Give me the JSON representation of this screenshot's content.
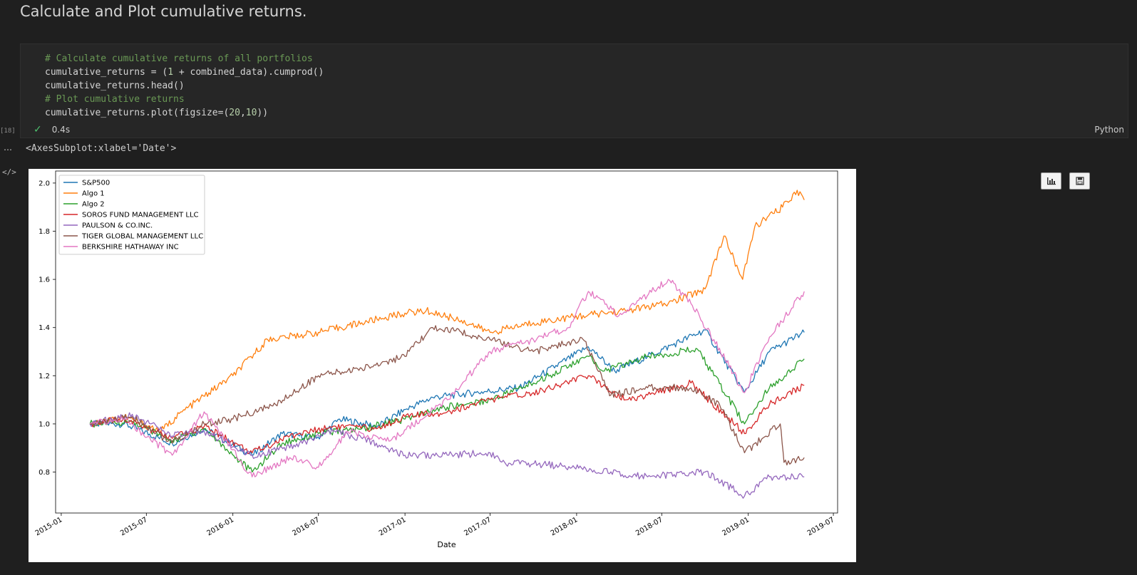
{
  "heading": "Calculate and Plot cumulative returns.",
  "cell": {
    "execution_count": "[18]",
    "code_lines": [
      [
        {
          "t": "# Calculate cumulative returns of all portfolios",
          "c": "comment"
        }
      ],
      [
        {
          "t": "cumulative_returns = (",
          "c": ""
        },
        {
          "t": "1",
          "c": "num"
        },
        {
          "t": " + combined_data).cumprod()",
          "c": ""
        }
      ],
      [
        {
          "t": "cumulative_returns.head()",
          "c": ""
        }
      ],
      [
        {
          "t": "# Plot cumulative returns",
          "c": "comment"
        }
      ],
      [
        {
          "t": "cumulative_returns.plot(figsize=(",
          "c": ""
        },
        {
          "t": "20",
          "c": "num"
        },
        {
          "t": ",",
          "c": ""
        },
        {
          "t": "10",
          "c": "num"
        },
        {
          "t": "))",
          "c": ""
        }
      ]
    ],
    "exec_time": "0.4s",
    "language": "Python",
    "output_repr": "<AxesSubplot:xlabel='Date'>"
  },
  "icons": {
    "status": "checkmark-icon",
    "more": "ellipsis-icon",
    "code": "code-brackets-icon",
    "toolbar": [
      "bar-chart-icon",
      "save-icon"
    ]
  },
  "chart_data": {
    "type": "line",
    "title": "",
    "xlabel": "Date",
    "ylabel": "",
    "xlim": [
      "2014-12-20",
      "2019-07-10"
    ],
    "ylim": [
      0.63,
      2.05
    ],
    "x_ticks": [
      "2015-01",
      "2015-07",
      "2016-01",
      "2016-07",
      "2017-01",
      "2017-07",
      "2018-01",
      "2018-07",
      "2019-01",
      "2019-07"
    ],
    "y_ticks": [
      0.8,
      1.0,
      1.2,
      1.4,
      1.6,
      1.8,
      2.0
    ],
    "grid": false,
    "legend_position": "top-left",
    "series": [
      {
        "name": "S&P500",
        "color": "#1f77b4",
        "points": [
          [
            "2015-03-03",
            1.0
          ],
          [
            "2015-05-15",
            1.0
          ],
          [
            "2015-08-25",
            0.92
          ],
          [
            "2015-11-01",
            0.98
          ],
          [
            "2016-02-11",
            0.87
          ],
          [
            "2016-04-15",
            0.96
          ],
          [
            "2016-06-27",
            0.94
          ],
          [
            "2016-08-15",
            1.02
          ],
          [
            "2016-11-03",
            0.99
          ],
          [
            "2017-01-02",
            1.06
          ],
          [
            "2017-03-01",
            1.11
          ],
          [
            "2017-06-01",
            1.13
          ],
          [
            "2017-09-01",
            1.15
          ],
          [
            "2018-01-26",
            1.32
          ],
          [
            "2018-03-23",
            1.22
          ],
          [
            "2018-06-01",
            1.28
          ],
          [
            "2018-10-01",
            1.39
          ],
          [
            "2018-12-24",
            1.13
          ],
          [
            "2019-02-15",
            1.3
          ],
          [
            "2019-04-30",
            1.38
          ]
        ]
      },
      {
        "name": "Algo 1",
        "color": "#ff7f0e",
        "points": [
          [
            "2015-03-03",
            1.0
          ],
          [
            "2015-05-15",
            1.03
          ],
          [
            "2015-08-01",
            0.97
          ],
          [
            "2015-09-15",
            1.05
          ],
          [
            "2016-01-01",
            1.2
          ],
          [
            "2016-03-15",
            1.35
          ],
          [
            "2016-07-01",
            1.38
          ],
          [
            "2016-10-01",
            1.42
          ],
          [
            "2017-01-01",
            1.46
          ],
          [
            "2017-02-15",
            1.47
          ],
          [
            "2017-05-01",
            1.43
          ],
          [
            "2017-07-01",
            1.38
          ],
          [
            "2017-10-01",
            1.42
          ],
          [
            "2018-01-15",
            1.45
          ],
          [
            "2018-04-15",
            1.47
          ],
          [
            "2018-07-15",
            1.5
          ],
          [
            "2018-10-01",
            1.56
          ],
          [
            "2018-11-10",
            1.78
          ],
          [
            "2018-12-20",
            1.6
          ],
          [
            "2019-01-15",
            1.82
          ],
          [
            "2019-03-15",
            1.9
          ],
          [
            "2019-04-15",
            1.97
          ],
          [
            "2019-04-30",
            1.93
          ]
        ]
      },
      {
        "name": "Algo 2",
        "color": "#2ca02c",
        "points": [
          [
            "2015-03-03",
            1.0
          ],
          [
            "2015-06-01",
            1.01
          ],
          [
            "2015-08-25",
            0.93
          ],
          [
            "2015-11-01",
            0.98
          ],
          [
            "2016-02-11",
            0.8
          ],
          [
            "2016-04-15",
            0.92
          ],
          [
            "2016-07-01",
            0.96
          ],
          [
            "2016-10-01",
            0.98
          ],
          [
            "2017-01-01",
            1.02
          ],
          [
            "2017-04-01",
            1.07
          ],
          [
            "2017-07-01",
            1.1
          ],
          [
            "2017-10-01",
            1.17
          ],
          [
            "2018-01-26",
            1.28
          ],
          [
            "2018-03-01",
            1.22
          ],
          [
            "2018-06-01",
            1.28
          ],
          [
            "2018-09-15",
            1.31
          ],
          [
            "2018-10-20",
            1.2
          ],
          [
            "2018-12-24",
            1.0
          ],
          [
            "2019-02-15",
            1.15
          ],
          [
            "2019-04-30",
            1.27
          ]
        ]
      },
      {
        "name": "SOROS FUND MANAGEMENT LLC",
        "color": "#d62728",
        "points": [
          [
            "2015-03-03",
            1.0
          ],
          [
            "2015-05-15",
            1.02
          ],
          [
            "2015-08-25",
            0.94
          ],
          [
            "2015-11-01",
            0.99
          ],
          [
            "2016-02-11",
            0.88
          ],
          [
            "2016-05-01",
            0.95
          ],
          [
            "2016-08-01",
            0.99
          ],
          [
            "2016-11-01",
            0.98
          ],
          [
            "2017-01-01",
            1.03
          ],
          [
            "2017-04-01",
            1.05
          ],
          [
            "2017-07-01",
            1.1
          ],
          [
            "2017-10-01",
            1.13
          ],
          [
            "2018-01-26",
            1.2
          ],
          [
            "2018-04-15",
            1.1
          ],
          [
            "2018-06-01",
            1.12
          ],
          [
            "2018-09-01",
            1.17
          ],
          [
            "2018-12-24",
            0.96
          ],
          [
            "2019-02-15",
            1.08
          ],
          [
            "2019-04-30",
            1.16
          ]
        ]
      },
      {
        "name": "PAULSON & CO.INC.",
        "color": "#9467bd",
        "points": [
          [
            "2015-03-03",
            1.0
          ],
          [
            "2015-06-01",
            1.04
          ],
          [
            "2015-08-25",
            0.95
          ],
          [
            "2015-11-01",
            0.97
          ],
          [
            "2016-02-11",
            0.87
          ],
          [
            "2016-05-01",
            0.9
          ],
          [
            "2016-08-01",
            0.97
          ],
          [
            "2016-11-01",
            0.92
          ],
          [
            "2017-01-01",
            0.87
          ],
          [
            "2017-04-01",
            0.87
          ],
          [
            "2017-07-01",
            0.88
          ],
          [
            "2017-08-01",
            0.84
          ],
          [
            "2017-11-01",
            0.83
          ],
          [
            "2018-02-01",
            0.81
          ],
          [
            "2018-06-01",
            0.78
          ],
          [
            "2018-10-01",
            0.8
          ],
          [
            "2018-12-24",
            0.7
          ],
          [
            "2019-02-15",
            0.78
          ],
          [
            "2019-04-30",
            0.78
          ]
        ]
      },
      {
        "name": "TIGER GLOBAL MANAGEMENT LLC",
        "color": "#8c564b",
        "points": [
          [
            "2015-03-03",
            1.0
          ],
          [
            "2015-06-01",
            1.03
          ],
          [
            "2015-08-25",
            0.92
          ],
          [
            "2015-11-01",
            1.0
          ],
          [
            "2016-01-01",
            1.02
          ],
          [
            "2016-04-01",
            1.08
          ],
          [
            "2016-07-01",
            1.2
          ],
          [
            "2016-10-01",
            1.23
          ],
          [
            "2017-01-01",
            1.28
          ],
          [
            "2017-03-01",
            1.4
          ],
          [
            "2017-05-01",
            1.38
          ],
          [
            "2017-07-01",
            1.35
          ],
          [
            "2017-10-01",
            1.3
          ],
          [
            "2018-01-15",
            1.35
          ],
          [
            "2018-03-15",
            1.12
          ],
          [
            "2018-06-01",
            1.15
          ],
          [
            "2018-09-01",
            1.15
          ],
          [
            "2018-11-01",
            1.08
          ],
          [
            "2018-12-24",
            0.88
          ],
          [
            "2019-03-10",
            1.0
          ],
          [
            "2019-03-18",
            0.84
          ],
          [
            "2019-04-30",
            0.86
          ]
        ]
      },
      {
        "name": "BERKSHIRE HATHAWAY INC",
        "color": "#e377c2",
        "points": [
          [
            "2015-03-03",
            1.0
          ],
          [
            "2015-05-15",
            1.02
          ],
          [
            "2015-08-25",
            0.87
          ],
          [
            "2015-11-01",
            1.05
          ],
          [
            "2016-02-11",
            0.78
          ],
          [
            "2016-05-01",
            0.86
          ],
          [
            "2016-07-01",
            0.82
          ],
          [
            "2016-09-01",
            0.97
          ],
          [
            "2016-12-01",
            0.93
          ],
          [
            "2017-04-01",
            1.1
          ],
          [
            "2017-07-01",
            1.3
          ],
          [
            "2017-10-01",
            1.35
          ],
          [
            "2017-12-15",
            1.4
          ],
          [
            "2018-01-26",
            1.55
          ],
          [
            "2018-04-01",
            1.45
          ],
          [
            "2018-07-15",
            1.6
          ],
          [
            "2018-09-01",
            1.5
          ],
          [
            "2018-10-20",
            1.35
          ],
          [
            "2018-12-24",
            1.13
          ],
          [
            "2019-02-15",
            1.36
          ],
          [
            "2019-04-30",
            1.55
          ]
        ]
      }
    ]
  }
}
